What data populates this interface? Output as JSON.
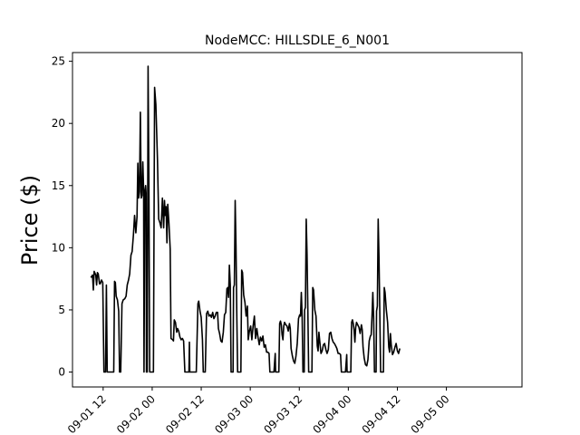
{
  "chart_data": {
    "type": "line",
    "title": "NodeMCC: HILLSDLE_6_N001",
    "xlabel": "",
    "ylabel": "Price ($)",
    "x_unit": "hours",
    "xlim": [
      28.5,
      138.5
    ],
    "ylim": [
      -1.2,
      25.7
    ],
    "x_ticks": [
      {
        "value": 36,
        "label": "09-01 12"
      },
      {
        "value": 48,
        "label": "09-02 00"
      },
      {
        "value": 60,
        "label": "09-02 12"
      },
      {
        "value": 72,
        "label": "09-03 00"
      },
      {
        "value": 84,
        "label": "09-03 12"
      },
      {
        "value": 96,
        "label": "09-04 00"
      },
      {
        "value": 108,
        "label": "09-04 12"
      },
      {
        "value": 120,
        "label": "09-05 00"
      }
    ],
    "y_ticks": [
      0,
      5,
      10,
      15,
      20,
      25
    ],
    "grid": false,
    "series": [
      {
        "name": "",
        "color": "#000000",
        "points": [
          [
            33.0,
            7.6
          ],
          [
            33.4,
            7.8
          ],
          [
            33.6,
            6.6
          ],
          [
            33.8,
            8.1
          ],
          [
            34.2,
            7.8
          ],
          [
            34.4,
            7.0
          ],
          [
            34.6,
            8.0
          ],
          [
            34.8,
            7.9
          ],
          [
            35.1,
            7.1
          ],
          [
            35.3,
            7.1
          ],
          [
            35.6,
            7.4
          ],
          [
            35.9,
            7.2
          ],
          [
            36.2,
            0.0
          ],
          [
            36.6,
            0.0
          ],
          [
            36.8,
            7.0
          ],
          [
            37.0,
            0.0
          ],
          [
            38.6,
            0.0
          ],
          [
            38.8,
            7.3
          ],
          [
            39.0,
            7.2
          ],
          [
            39.2,
            6.1
          ],
          [
            39.5,
            5.8
          ],
          [
            39.8,
            4.9
          ],
          [
            40.0,
            0.0
          ],
          [
            40.3,
            0.0
          ],
          [
            40.6,
            5.5
          ],
          [
            40.9,
            5.8
          ],
          [
            41.3,
            5.9
          ],
          [
            41.6,
            6.1
          ],
          [
            41.9,
            7.0
          ],
          [
            42.2,
            7.4
          ],
          [
            42.5,
            7.9
          ],
          [
            42.8,
            9.4
          ],
          [
            43.1,
            9.7
          ],
          [
            43.4,
            11.0
          ],
          [
            43.7,
            12.6
          ],
          [
            44.0,
            11.2
          ],
          [
            44.3,
            12.5
          ],
          [
            44.5,
            16.8
          ],
          [
            44.7,
            14.0
          ],
          [
            44.9,
            14.5
          ],
          [
            45.1,
            20.9
          ],
          [
            45.3,
            14.0
          ],
          [
            45.5,
            14.2
          ],
          [
            45.7,
            16.9
          ],
          [
            45.9,
            14.6
          ],
          [
            46.0,
            0.0
          ],
          [
            46.2,
            14.5
          ],
          [
            46.4,
            15.0
          ],
          [
            46.5,
            14.4
          ],
          [
            46.6,
            0.0
          ],
          [
            46.8,
            0.0
          ],
          [
            47.0,
            24.6
          ],
          [
            47.2,
            15.4
          ],
          [
            47.4,
            0.0
          ],
          [
            48.3,
            0.0
          ],
          [
            48.6,
            22.9
          ],
          [
            48.9,
            21.5
          ],
          [
            49.3,
            17.0
          ],
          [
            49.6,
            12.3
          ],
          [
            49.9,
            12.0
          ],
          [
            50.2,
            11.6
          ],
          [
            50.5,
            14.0
          ],
          [
            50.8,
            11.6
          ],
          [
            51.0,
            13.8
          ],
          [
            51.2,
            12.6
          ],
          [
            51.4,
            13.3
          ],
          [
            51.6,
            10.4
          ],
          [
            51.8,
            13.5
          ],
          [
            52.1,
            12.0
          ],
          [
            52.4,
            9.9
          ],
          [
            52.6,
            2.7
          ],
          [
            53.0,
            2.6
          ],
          [
            53.2,
            2.5
          ],
          [
            53.4,
            4.2
          ],
          [
            53.7,
            4.0
          ],
          [
            54.0,
            3.2
          ],
          [
            54.2,
            3.5
          ],
          [
            54.5,
            3.3
          ],
          [
            54.8,
            2.8
          ],
          [
            55.1,
            2.6
          ],
          [
            55.4,
            2.7
          ],
          [
            55.7,
            2.5
          ],
          [
            56.0,
            0.0
          ],
          [
            57.0,
            0.0
          ],
          [
            57.1,
            2.4
          ],
          [
            57.2,
            0.0
          ],
          [
            58.8,
            0.0
          ],
          [
            59.2,
            5.5
          ],
          [
            59.4,
            5.7
          ],
          [
            59.7,
            4.9
          ],
          [
            60.0,
            4.4
          ],
          [
            60.3,
            2.6
          ],
          [
            60.5,
            0.0
          ],
          [
            61.0,
            0.0
          ],
          [
            61.3,
            4.7
          ],
          [
            61.6,
            4.9
          ],
          [
            61.9,
            4.5
          ],
          [
            62.2,
            4.6
          ],
          [
            62.5,
            4.4
          ],
          [
            62.8,
            4.8
          ],
          [
            63.1,
            4.3
          ],
          [
            63.4,
            4.5
          ],
          [
            63.7,
            4.8
          ],
          [
            64.0,
            4.8
          ],
          [
            64.2,
            3.5
          ],
          [
            64.5,
            3.1
          ],
          [
            64.8,
            2.5
          ],
          [
            65.1,
            2.4
          ],
          [
            65.4,
            3.2
          ],
          [
            65.7,
            4.6
          ],
          [
            66.0,
            4.8
          ],
          [
            66.3,
            6.7
          ],
          [
            66.5,
            6.8
          ],
          [
            66.7,
            6.0
          ],
          [
            66.9,
            8.6
          ],
          [
            67.1,
            7.0
          ],
          [
            67.3,
            0.0
          ],
          [
            67.8,
            0.0
          ],
          [
            67.9,
            6.8
          ],
          [
            68.1,
            7.0
          ],
          [
            68.3,
            13.8
          ],
          [
            68.5,
            10.2
          ],
          [
            68.7,
            4.6
          ],
          [
            68.9,
            0.0
          ],
          [
            69.7,
            0.0
          ],
          [
            69.9,
            8.2
          ],
          [
            70.1,
            8.0
          ],
          [
            70.4,
            6.2
          ],
          [
            70.7,
            5.6
          ],
          [
            71.0,
            4.5
          ],
          [
            71.3,
            5.3
          ],
          [
            71.5,
            2.6
          ],
          [
            71.8,
            3.3
          ],
          [
            72.1,
            3.7
          ],
          [
            72.4,
            2.6
          ],
          [
            72.7,
            3.7
          ],
          [
            73.0,
            4.5
          ],
          [
            73.3,
            2.7
          ],
          [
            73.6,
            3.5
          ],
          [
            73.9,
            2.8
          ],
          [
            74.2,
            2.2
          ],
          [
            74.5,
            2.8
          ],
          [
            74.8,
            2.5
          ],
          [
            75.1,
            2.9
          ],
          [
            75.4,
            2.0
          ],
          [
            75.7,
            2.2
          ],
          [
            76.0,
            1.6
          ],
          [
            76.3,
            1.6
          ],
          [
            76.6,
            1.5
          ],
          [
            76.8,
            0.0
          ],
          [
            77.8,
            0.0
          ],
          [
            78.1,
            1.5
          ],
          [
            78.2,
            0.0
          ],
          [
            79.0,
            0.0
          ],
          [
            79.2,
            3.9
          ],
          [
            79.4,
            4.1
          ],
          [
            79.6,
            3.8
          ],
          [
            79.8,
            3.0
          ],
          [
            80.0,
            2.6
          ],
          [
            80.2,
            3.7
          ],
          [
            80.4,
            4.0
          ],
          [
            80.7,
            3.8
          ],
          [
            81.0,
            3.7
          ],
          [
            81.3,
            3.3
          ],
          [
            81.6,
            3.9
          ],
          [
            81.8,
            3.5
          ],
          [
            82.0,
            1.9
          ],
          [
            82.3,
            1.3
          ],
          [
            82.6,
            0.9
          ],
          [
            82.9,
            0.7
          ],
          [
            83.2,
            1.3
          ],
          [
            83.5,
            2.3
          ],
          [
            83.8,
            4.3
          ],
          [
            84.1,
            4.6
          ],
          [
            84.3,
            4.5
          ],
          [
            84.5,
            6.4
          ],
          [
            84.7,
            4.5
          ],
          [
            84.9,
            0.0
          ],
          [
            85.2,
            0.0
          ],
          [
            85.3,
            5.0
          ],
          [
            85.5,
            5.2
          ],
          [
            85.7,
            12.3
          ],
          [
            85.9,
            9.5
          ],
          [
            86.1,
            5.0
          ],
          [
            86.3,
            0.0
          ],
          [
            87.1,
            0.0
          ],
          [
            87.3,
            6.8
          ],
          [
            87.5,
            6.6
          ],
          [
            87.8,
            5.0
          ],
          [
            88.1,
            4.5
          ],
          [
            88.4,
            2.1
          ],
          [
            88.6,
            1.7
          ],
          [
            88.8,
            3.2
          ],
          [
            89.0,
            2.5
          ],
          [
            89.3,
            1.5
          ],
          [
            89.6,
            1.7
          ],
          [
            89.9,
            2.2
          ],
          [
            90.2,
            2.3
          ],
          [
            90.5,
            1.8
          ],
          [
            90.8,
            1.5
          ],
          [
            91.1,
            1.8
          ],
          [
            91.4,
            3.1
          ],
          [
            91.7,
            3.2
          ],
          [
            92.0,
            2.7
          ],
          [
            92.3,
            2.4
          ],
          [
            92.6,
            2.3
          ],
          [
            92.9,
            2.1
          ],
          [
            93.2,
            1.9
          ],
          [
            93.5,
            1.5
          ],
          [
            93.8,
            1.5
          ],
          [
            94.1,
            1.4
          ],
          [
            94.3,
            0.0
          ],
          [
            95.3,
            0.0
          ],
          [
            95.6,
            1.4
          ],
          [
            95.7,
            0.0
          ],
          [
            96.6,
            0.0
          ],
          [
            96.8,
            4.0
          ],
          [
            97.0,
            4.2
          ],
          [
            97.2,
            3.9
          ],
          [
            97.4,
            3.4
          ],
          [
            97.6,
            2.4
          ],
          [
            97.8,
            3.6
          ],
          [
            98.0,
            4.0
          ],
          [
            98.3,
            3.8
          ],
          [
            98.6,
            3.6
          ],
          [
            98.9,
            3.1
          ],
          [
            99.2,
            3.8
          ],
          [
            99.4,
            3.4
          ],
          [
            99.6,
            2.0
          ],
          [
            99.9,
            1.1
          ],
          [
            100.2,
            0.6
          ],
          [
            100.5,
            0.5
          ],
          [
            100.8,
            1.0
          ],
          [
            101.1,
            2.5
          ],
          [
            101.4,
            2.9
          ],
          [
            101.6,
            3.0
          ],
          [
            101.8,
            4.5
          ],
          [
            102.0,
            6.4
          ],
          [
            102.2,
            4.4
          ],
          [
            102.4,
            0.0
          ],
          [
            102.8,
            0.0
          ],
          [
            102.9,
            4.9
          ],
          [
            103.1,
            5.3
          ],
          [
            103.3,
            12.3
          ],
          [
            103.5,
            9.2
          ],
          [
            103.7,
            4.8
          ],
          [
            103.9,
            0.0
          ],
          [
            104.6,
            0.0
          ],
          [
            104.8,
            6.8
          ],
          [
            105.0,
            6.4
          ],
          [
            105.3,
            5.0
          ],
          [
            105.6,
            4.0
          ],
          [
            105.9,
            2.0
          ],
          [
            106.1,
            1.6
          ],
          [
            106.3,
            3.1
          ],
          [
            106.5,
            2.2
          ],
          [
            106.8,
            1.4
          ],
          [
            107.1,
            1.6
          ],
          [
            107.4,
            2.0
          ],
          [
            107.7,
            2.3
          ],
          [
            108.0,
            1.7
          ],
          [
            108.3,
            1.5
          ],
          [
            108.6,
            1.9
          ]
        ]
      }
    ]
  }
}
